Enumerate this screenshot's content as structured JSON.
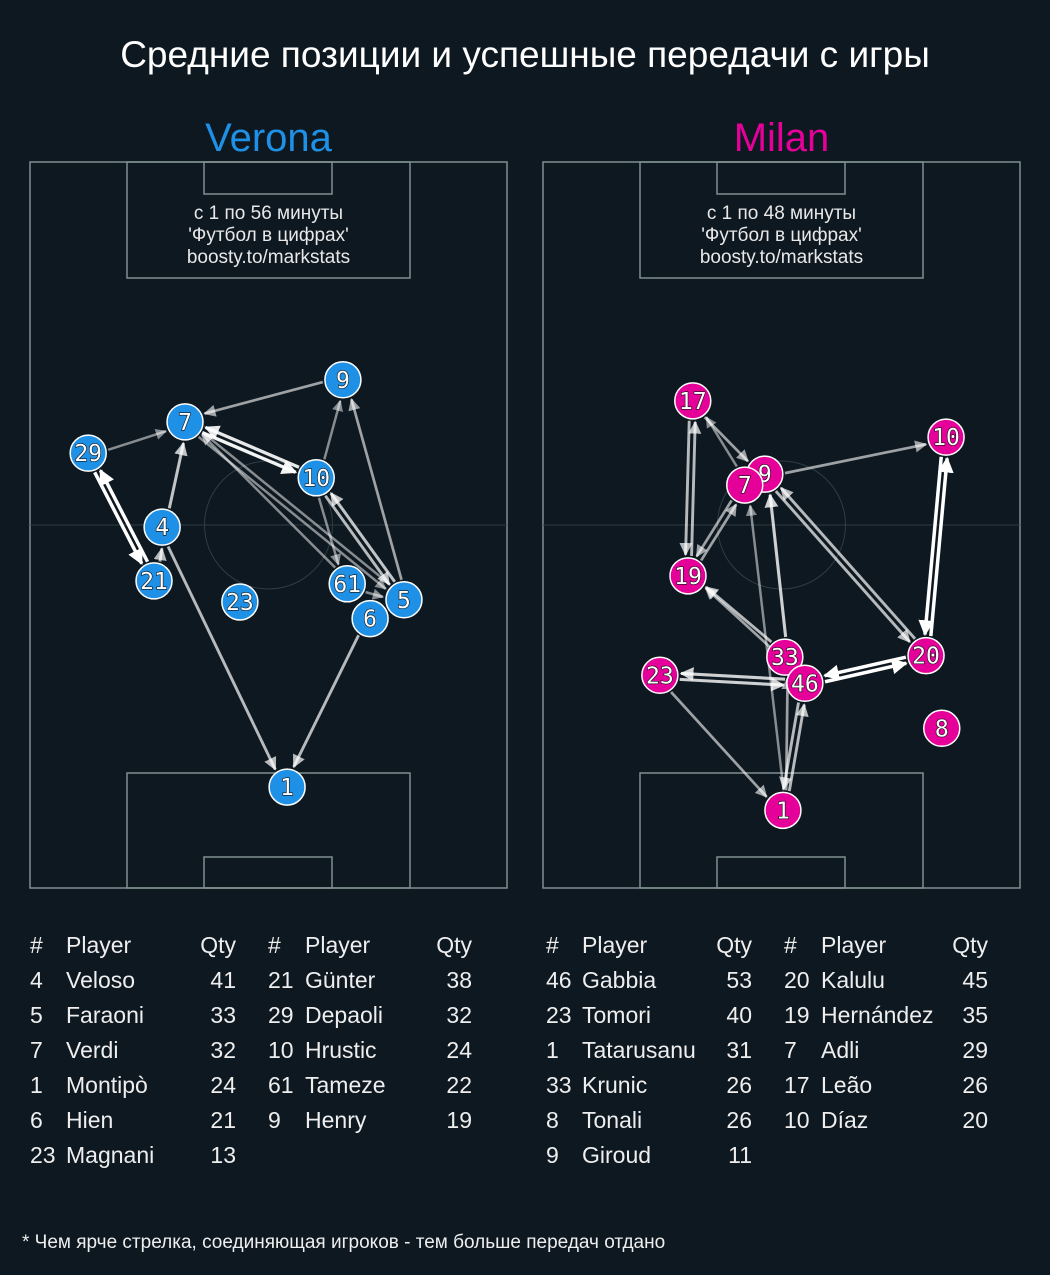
{
  "title": "Средние позиции и успешные передачи с игры",
  "footnote": "* Чем ярче стрелка, соединяющая игроков - тем больше передач отдано",
  "chart_data": [
    {
      "type": "pass-network",
      "team": "Verona",
      "color": "#1e90e6",
      "note_lines": [
        "с 1 по 56 минуты",
        "'Футбол в цифрах'",
        "boosty.to/markstats"
      ],
      "players": [
        {
          "num": "9",
          "x": 65.6,
          "y": 30.0
        },
        {
          "num": "7",
          "x": 32.5,
          "y": 35.8
        },
        {
          "num": "29",
          "x": 12.2,
          "y": 40.1
        },
        {
          "num": "10",
          "x": 60.0,
          "y": 43.5
        },
        {
          "num": "4",
          "x": 27.7,
          "y": 50.3
        },
        {
          "num": "21",
          "x": 26.0,
          "y": 57.7
        },
        {
          "num": "23",
          "x": 44.0,
          "y": 60.6
        },
        {
          "num": "61",
          "x": 66.5,
          "y": 58.1
        },
        {
          "num": "5",
          "x": 78.4,
          "y": 60.3
        },
        {
          "num": "6",
          "x": 71.3,
          "y": 62.9
        },
        {
          "num": "1",
          "x": 53.9,
          "y": 86.1
        }
      ],
      "passes": [
        {
          "from": "9",
          "to": "7",
          "strength": 0.6
        },
        {
          "from": "29",
          "to": "7",
          "strength": 0.5
        },
        {
          "from": "7",
          "to": "10",
          "strength": 0.95
        },
        {
          "from": "10",
          "to": "7",
          "strength": 0.9
        },
        {
          "from": "10",
          "to": "9",
          "strength": 0.5
        },
        {
          "from": "5",
          "to": "9",
          "strength": 0.6
        },
        {
          "from": "4",
          "to": "7",
          "strength": 0.75
        },
        {
          "from": "21",
          "to": "29",
          "strength": 1.0
        },
        {
          "from": "29",
          "to": "21",
          "strength": 1.0
        },
        {
          "from": "21",
          "to": "4",
          "strength": 0.7
        },
        {
          "from": "4",
          "to": "1",
          "strength": 0.7
        },
        {
          "from": "6",
          "to": "1",
          "strength": 0.7
        },
        {
          "from": "61",
          "to": "7",
          "strength": 0.5
        },
        {
          "from": "5",
          "to": "7",
          "strength": 0.5
        },
        {
          "from": "7",
          "to": "5",
          "strength": 0.5
        },
        {
          "from": "10",
          "to": "61",
          "strength": 0.5
        },
        {
          "from": "5",
          "to": "10",
          "strength": 0.75
        },
        {
          "from": "10",
          "to": "5",
          "strength": 0.7
        },
        {
          "from": "61",
          "to": "5",
          "strength": 0.5
        }
      ],
      "table": {
        "headers": [
          "#",
          "Player",
          "Qty"
        ],
        "rows": [
          [
            "4",
            "Veloso",
            "41"
          ],
          [
            "5",
            "Faraoni",
            "33"
          ],
          [
            "7",
            "Verdi",
            "32"
          ],
          [
            "1",
            "Montipò",
            "24"
          ],
          [
            "6",
            "Hien",
            "21"
          ],
          [
            "23",
            "Magnani",
            "13"
          ],
          [
            "21",
            "Günter",
            "38"
          ],
          [
            "29",
            "Depaoli",
            "32"
          ],
          [
            "10",
            "Hrustic",
            "24"
          ],
          [
            "61",
            "Tameze",
            "22"
          ],
          [
            "9",
            "Henry",
            "19"
          ]
        ]
      }
    },
    {
      "type": "pass-network",
      "team": "Milan",
      "color": "#e6009a",
      "note_lines": [
        "с 1 по 48 минуты",
        "'Футбол в цифрах'",
        "boosty.to/markstats"
      ],
      "players": [
        {
          "num": "17",
          "x": 31.4,
          "y": 32.9
        },
        {
          "num": "9",
          "x": 46.5,
          "y": 43.0
        },
        {
          "num": "7",
          "x": 42.3,
          "y": 44.5
        },
        {
          "num": "10",
          "x": 84.5,
          "y": 37.9
        },
        {
          "num": "19",
          "x": 30.4,
          "y": 57.0
        },
        {
          "num": "33",
          "x": 50.7,
          "y": 68.2
        },
        {
          "num": "46",
          "x": 54.9,
          "y": 71.8
        },
        {
          "num": "20",
          "x": 80.3,
          "y": 68.0
        },
        {
          "num": "23",
          "x": 24.5,
          "y": 70.7
        },
        {
          "num": "8",
          "x": 83.6,
          "y": 78.0
        },
        {
          "num": "1",
          "x": 50.3,
          "y": 89.3
        }
      ],
      "passes": [
        {
          "from": "17",
          "to": "9",
          "strength": 0.6
        },
        {
          "from": "7",
          "to": "17",
          "strength": 0.5
        },
        {
          "from": "19",
          "to": "17",
          "strength": 0.7
        },
        {
          "from": "17",
          "to": "19",
          "strength": 0.7
        },
        {
          "from": "7",
          "to": "19",
          "strength": 0.6
        },
        {
          "from": "19",
          "to": "7",
          "strength": 0.6
        },
        {
          "from": "9",
          "to": "10",
          "strength": 0.6
        },
        {
          "from": "20",
          "to": "10",
          "strength": 1.0
        },
        {
          "from": "10",
          "to": "20",
          "strength": 1.0
        },
        {
          "from": "33",
          "to": "9",
          "strength": 0.8
        },
        {
          "from": "9",
          "to": "20",
          "strength": 0.7
        },
        {
          "from": "20",
          "to": "9",
          "strength": 0.7
        },
        {
          "from": "33",
          "to": "19",
          "strength": 0.7
        },
        {
          "from": "46",
          "to": "19",
          "strength": 0.6
        },
        {
          "from": "23",
          "to": "46",
          "strength": 0.8
        },
        {
          "from": "46",
          "to": "23",
          "strength": 0.8
        },
        {
          "from": "46",
          "to": "20",
          "strength": 1.0
        },
        {
          "from": "20",
          "to": "46",
          "strength": 1.0
        },
        {
          "from": "23",
          "to": "1",
          "strength": 0.6
        },
        {
          "from": "1",
          "to": "7",
          "strength": 0.5
        },
        {
          "from": "1",
          "to": "46",
          "strength": 0.7
        },
        {
          "from": "46",
          "to": "1",
          "strength": 0.7
        },
        {
          "from": "1",
          "to": "33",
          "strength": 0.6
        }
      ],
      "table": {
        "headers": [
          "#",
          "Player",
          "Qty"
        ],
        "rows": [
          [
            "46",
            "Gabbia",
            "53"
          ],
          [
            "23",
            "Tomori",
            "40"
          ],
          [
            "1",
            "Tatarusanu",
            "31"
          ],
          [
            "33",
            "Krunic",
            "26"
          ],
          [
            "8",
            "Tonali",
            "26"
          ],
          [
            "9",
            "Giroud",
            "11"
          ],
          [
            "20",
            "Kalulu",
            "45"
          ],
          [
            "19",
            "Hernández",
            "35"
          ],
          [
            "7",
            "Adli",
            "29"
          ],
          [
            "17",
            "Leão",
            "26"
          ],
          [
            "10",
            "Díaz",
            "20"
          ]
        ]
      }
    }
  ]
}
